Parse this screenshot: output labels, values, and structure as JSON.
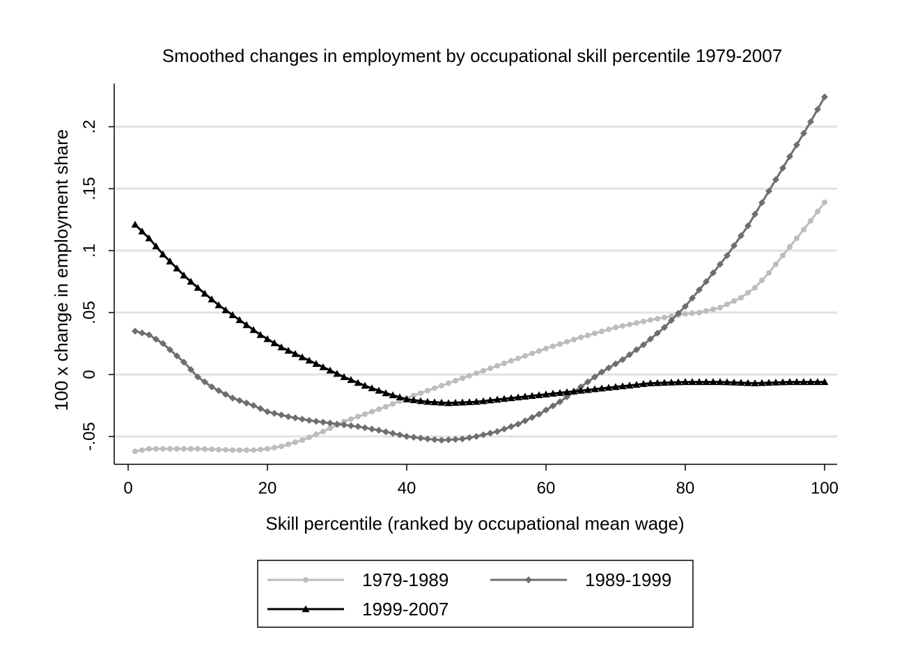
{
  "chart_data": {
    "type": "line",
    "title": "Smoothed changes in employment by occupational skill percentile 1979-2007",
    "xlabel": "Skill percentile (ranked by occupational mean wage)",
    "ylabel": "100 x change in employment share",
    "xlim": [
      0,
      100
    ],
    "ylim": [
      -0.07,
      0.235
    ],
    "x_ticks": [
      0,
      20,
      40,
      60,
      80,
      100
    ],
    "x_tick_labels": [
      "0",
      "20",
      "40",
      "60",
      "80",
      "100"
    ],
    "y_ticks": [
      -0.05,
      0,
      0.05,
      0.1,
      0.15,
      0.2
    ],
    "y_tick_labels": [
      "-.05",
      "0",
      ".05",
      ".1",
      ".15",
      ".2"
    ],
    "grid": "horizontal",
    "legend_position": "bottom",
    "series": [
      {
        "name": "1979-1989",
        "color": "#bdbdbd",
        "marker": "circle",
        "points": [
          [
            1,
            -0.062
          ],
          [
            3,
            -0.06
          ],
          [
            5,
            -0.06
          ],
          [
            8,
            -0.06
          ],
          [
            10,
            -0.06
          ],
          [
            15,
            -0.061
          ],
          [
            18,
            -0.061
          ],
          [
            20,
            -0.06
          ],
          [
            22,
            -0.058
          ],
          [
            25,
            -0.053
          ],
          [
            28,
            -0.046
          ],
          [
            31,
            -0.038
          ],
          [
            34,
            -0.032
          ],
          [
            37,
            -0.026
          ],
          [
            40,
            -0.019
          ],
          [
            43,
            -0.013
          ],
          [
            46,
            -0.007
          ],
          [
            50,
            0.001
          ],
          [
            55,
            0.011
          ],
          [
            60,
            0.021
          ],
          [
            65,
            0.03
          ],
          [
            70,
            0.038
          ],
          [
            75,
            0.044
          ],
          [
            78,
            0.047
          ],
          [
            80,
            0.049
          ],
          [
            82,
            0.05
          ],
          [
            85,
            0.054
          ],
          [
            88,
            0.062
          ],
          [
            90,
            0.07
          ],
          [
            92,
            0.082
          ],
          [
            94,
            0.096
          ],
          [
            96,
            0.11
          ],
          [
            98,
            0.124
          ],
          [
            100,
            0.139
          ]
        ]
      },
      {
        "name": "1989-1999",
        "color": "#6e6e6e",
        "marker": "diamond",
        "points": [
          [
            1,
            0.035
          ],
          [
            3,
            0.032
          ],
          [
            5,
            0.025
          ],
          [
            8,
            0.01
          ],
          [
            10,
            -0.002
          ],
          [
            12,
            -0.01
          ],
          [
            15,
            -0.019
          ],
          [
            18,
            -0.025
          ],
          [
            20,
            -0.03
          ],
          [
            23,
            -0.034
          ],
          [
            26,
            -0.037
          ],
          [
            30,
            -0.04
          ],
          [
            33,
            -0.042
          ],
          [
            36,
            -0.045
          ],
          [
            40,
            -0.05
          ],
          [
            43,
            -0.052
          ],
          [
            45,
            -0.053
          ],
          [
            48,
            -0.052
          ],
          [
            50,
            -0.05
          ],
          [
            53,
            -0.046
          ],
          [
            56,
            -0.04
          ],
          [
            59,
            -0.032
          ],
          [
            62,
            -0.022
          ],
          [
            65,
            -0.01
          ],
          [
            68,
            0.002
          ],
          [
            71,
            0.012
          ],
          [
            74,
            0.024
          ],
          [
            77,
            0.038
          ],
          [
            80,
            0.055
          ],
          [
            83,
            0.075
          ],
          [
            86,
            0.096
          ],
          [
            89,
            0.12
          ],
          [
            92,
            0.148
          ],
          [
            95,
            0.176
          ],
          [
            98,
            0.204
          ],
          [
            100,
            0.224
          ]
        ]
      },
      {
        "name": "1999-2007",
        "color": "#000000",
        "marker": "triangle",
        "points": [
          [
            1,
            0.121
          ],
          [
            3,
            0.11
          ],
          [
            5,
            0.097
          ],
          [
            8,
            0.08
          ],
          [
            10,
            0.07
          ],
          [
            13,
            0.056
          ],
          [
            16,
            0.044
          ],
          [
            19,
            0.032
          ],
          [
            22,
            0.022
          ],
          [
            25,
            0.014
          ],
          [
            28,
            0.006
          ],
          [
            31,
            -0.002
          ],
          [
            34,
            -0.009
          ],
          [
            37,
            -0.015
          ],
          [
            40,
            -0.02
          ],
          [
            43,
            -0.022
          ],
          [
            46,
            -0.023
          ],
          [
            50,
            -0.022
          ],
          [
            55,
            -0.019
          ],
          [
            60,
            -0.016
          ],
          [
            65,
            -0.013
          ],
          [
            70,
            -0.01
          ],
          [
            75,
            -0.007
          ],
          [
            80,
            -0.006
          ],
          [
            85,
            -0.006
          ],
          [
            90,
            -0.007
          ],
          [
            95,
            -0.006
          ],
          [
            100,
            -0.006
          ]
        ]
      }
    ]
  }
}
